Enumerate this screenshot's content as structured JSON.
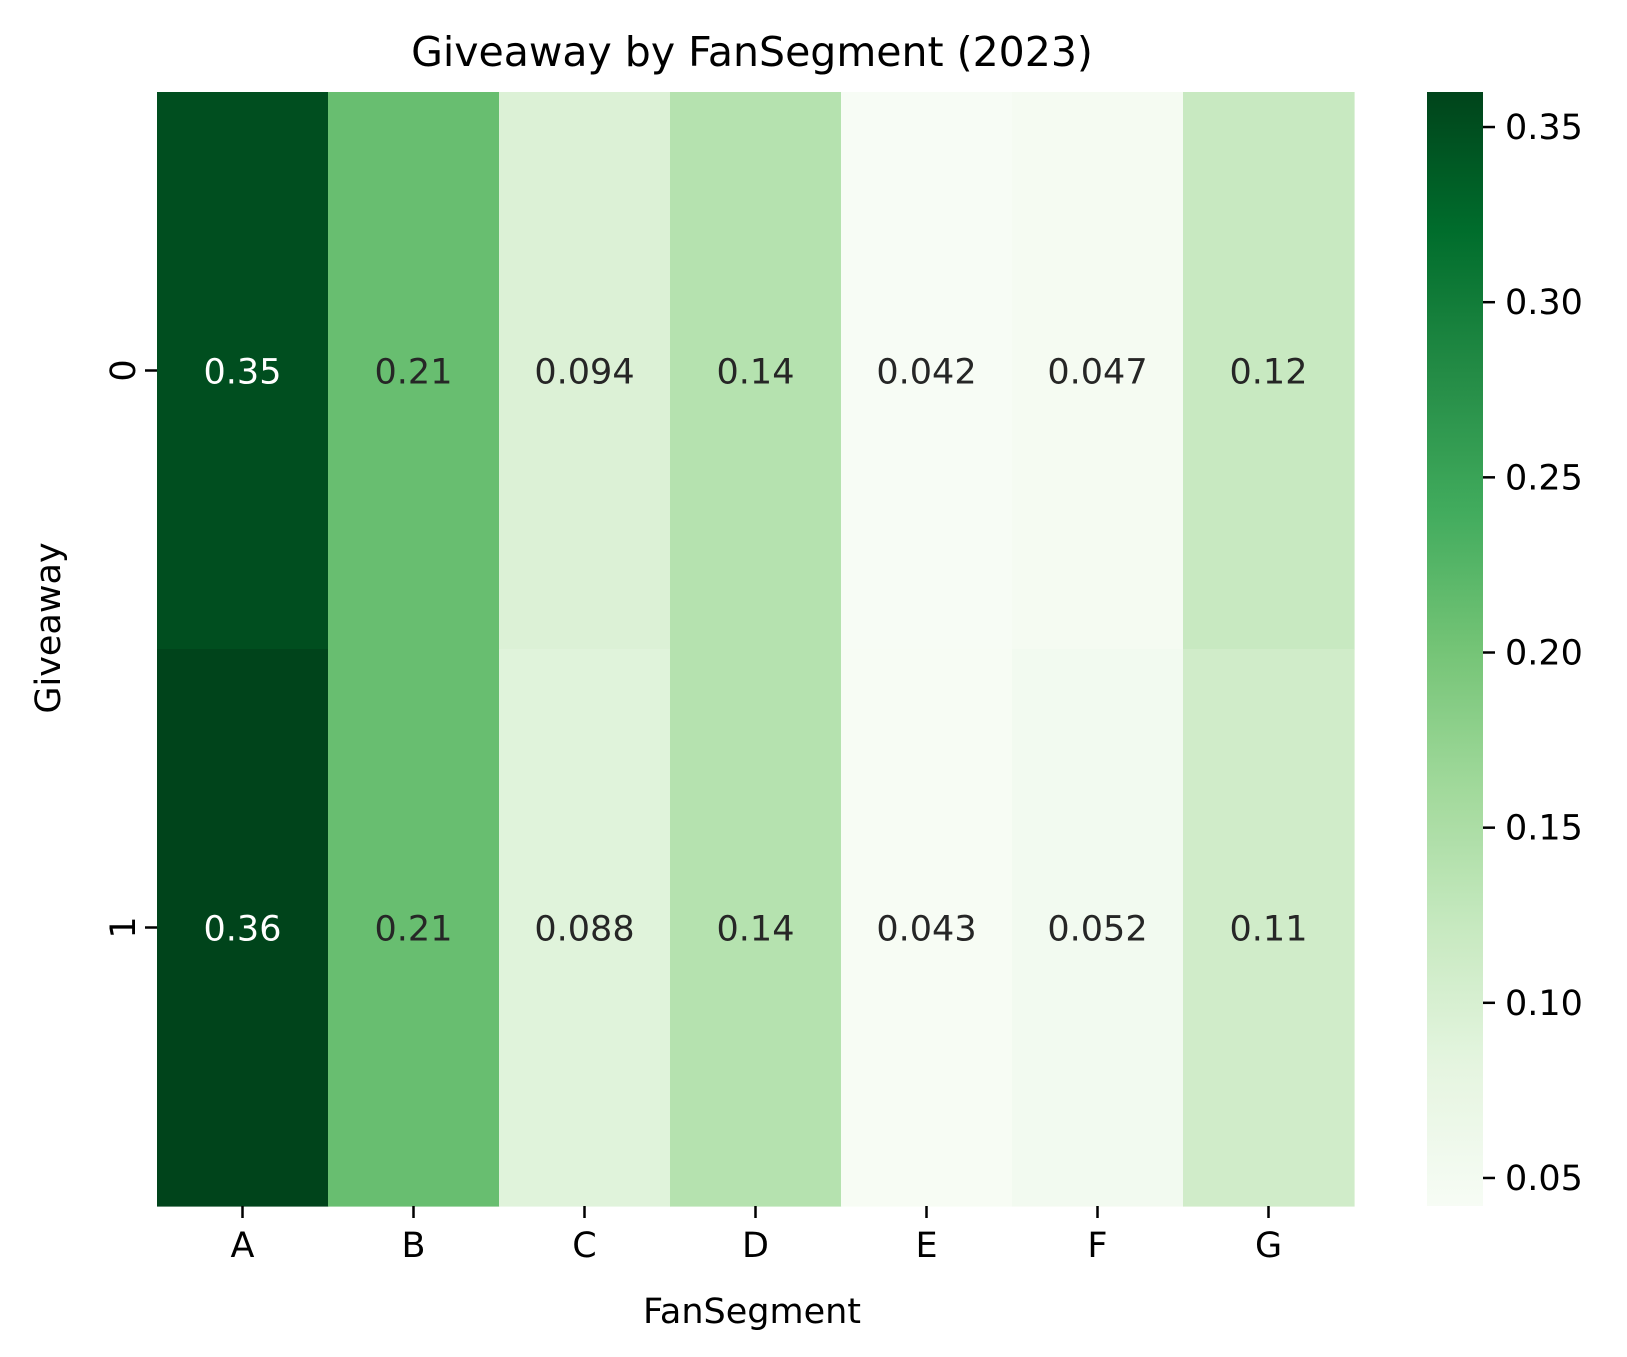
{
  "chart_data": {
    "type": "heatmap",
    "title": "Giveaway by FanSegment (2023)",
    "xlabel": "FanSegment",
    "ylabel": "Giveaway",
    "x_categories": [
      "A",
      "B",
      "C",
      "D",
      "E",
      "F",
      "G"
    ],
    "y_categories": [
      "0",
      "1"
    ],
    "values": [
      [
        0.35,
        0.21,
        0.094,
        0.14,
        0.042,
        0.047,
        0.12
      ],
      [
        0.36,
        0.21,
        0.088,
        0.14,
        0.043,
        0.052,
        0.11
      ]
    ],
    "value_labels": [
      [
        "0.35",
        "0.21",
        "0.094",
        "0.14",
        "0.042",
        "0.047",
        "0.12"
      ],
      [
        "0.36",
        "0.21",
        "0.088",
        "0.14",
        "0.043",
        "0.052",
        "0.11"
      ]
    ],
    "colormap": "Greens",
    "colorbar": {
      "vmin": 0.042,
      "vmax": 0.36,
      "ticks": [
        0.05,
        0.1,
        0.15,
        0.2,
        0.25,
        0.3,
        0.35
      ],
      "tick_labels": [
        "0.05",
        "0.10",
        "0.15",
        "0.20",
        "0.25",
        "0.30",
        "0.35"
      ]
    },
    "colors": {
      "label_dark": "#262626",
      "label_light": "#ffffff",
      "greens_stops": [
        "#f7fcf5",
        "#e5f5e0",
        "#c7e9c0",
        "#a1d99b",
        "#74c476",
        "#41ab5d",
        "#238b45",
        "#006d2c",
        "#00441b"
      ]
    }
  }
}
